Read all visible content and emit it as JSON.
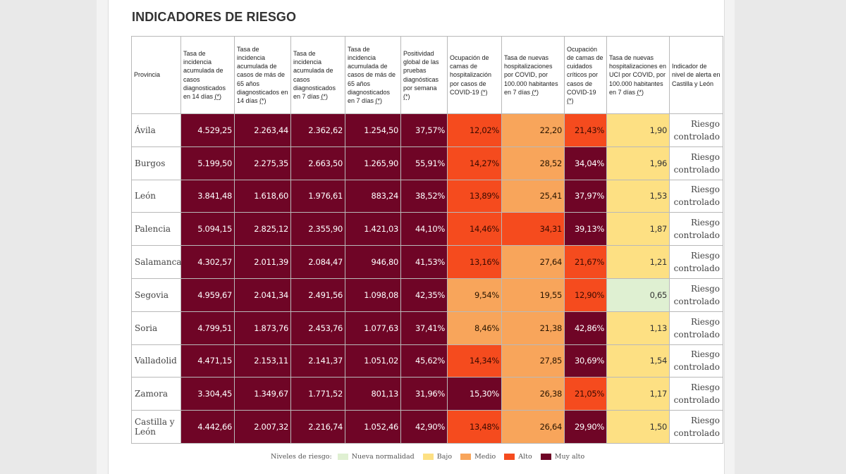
{
  "title": "INDICADORES DE RIESGO",
  "headers": [
    {
      "text": "Provincia",
      "star": ""
    },
    {
      "text": "Tasa de incidencia acumulada de casos diagnosticados en 14 días ",
      "star": "(*)"
    },
    {
      "text": "Tasa de incidencia acumulada de casos de más de 65 años diagnosticados en 14 días ",
      "star": "(*)"
    },
    {
      "text": "Tasa de incidencia acumulada de casos diagnosticados en 7 días ",
      "star": "(*)"
    },
    {
      "text": "Tasa de incidencia acumulada de casos de más de 65 años diagnosticados en 7 días ",
      "star": "(*)"
    },
    {
      "text": "Positividad global de las pruebas diagnósticas por semana ",
      "star": "(*)"
    },
    {
      "text": "Ocupación de camas de hospitalización por casos de COVID-19 ",
      "star": "(*)"
    },
    {
      "text": "Tasa de nuevas hospitalizaciones por COVID, por 100.000 habitantes en 7 días ",
      "star": "(*)"
    },
    {
      "text": "Ocupación de camas de cuidados críticos por casos de COVID-19 ",
      "star": "(*)"
    },
    {
      "text": "Tasa de nuevas hospitalizaciones en UCI por COVID, por 100.000 habitantes en 7 días ",
      "star": "(*)"
    },
    {
      "text": "Indicador de nivel de alerta en Castilla y León",
      "star": ""
    }
  ],
  "rows": [
    {
      "province": "Ávila",
      "alert": "Riesgo controlado",
      "cells": [
        {
          "v": "4.529,25",
          "l": "muyalto"
        },
        {
          "v": "2.263,44",
          "l": "muyalto"
        },
        {
          "v": "2.362,62",
          "l": "muyalto"
        },
        {
          "v": "1.254,50",
          "l": "muyalto"
        },
        {
          "v": "37,57%",
          "l": "muyalto"
        },
        {
          "v": "12,02%",
          "l": "alto"
        },
        {
          "v": "22,20",
          "l": "medio"
        },
        {
          "v": "21,43%",
          "l": "alto"
        },
        {
          "v": "1,90",
          "l": "bajo"
        }
      ]
    },
    {
      "province": "Burgos",
      "alert": "Riesgo controlado",
      "cells": [
        {
          "v": "5.199,50",
          "l": "muyalto"
        },
        {
          "v": "2.275,35",
          "l": "muyalto"
        },
        {
          "v": "2.663,50",
          "l": "muyalto"
        },
        {
          "v": "1.265,90",
          "l": "muyalto"
        },
        {
          "v": "55,91%",
          "l": "muyalto"
        },
        {
          "v": "14,27%",
          "l": "alto"
        },
        {
          "v": "28,52",
          "l": "medio"
        },
        {
          "v": "34,04%",
          "l": "muyalto"
        },
        {
          "v": "1,96",
          "l": "bajo"
        }
      ]
    },
    {
      "province": "León",
      "alert": "Riesgo controlado",
      "cells": [
        {
          "v": "3.841,48",
          "l": "muyalto"
        },
        {
          "v": "1.618,60",
          "l": "muyalto"
        },
        {
          "v": "1.976,61",
          "l": "muyalto"
        },
        {
          "v": "883,24",
          "l": "muyalto"
        },
        {
          "v": "38,52%",
          "l": "muyalto"
        },
        {
          "v": "13,89%",
          "l": "alto"
        },
        {
          "v": "25,41",
          "l": "medio"
        },
        {
          "v": "37,97%",
          "l": "muyalto"
        },
        {
          "v": "1,53",
          "l": "bajo"
        }
      ]
    },
    {
      "province": "Palencia",
      "alert": "Riesgo controlado",
      "cells": [
        {
          "v": "5.094,15",
          "l": "muyalto"
        },
        {
          "v": "2.825,12",
          "l": "muyalto"
        },
        {
          "v": "2.355,90",
          "l": "muyalto"
        },
        {
          "v": "1.421,03",
          "l": "muyalto"
        },
        {
          "v": "44,10%",
          "l": "muyalto"
        },
        {
          "v": "14,46%",
          "l": "alto"
        },
        {
          "v": "34,31",
          "l": "alto"
        },
        {
          "v": "39,13%",
          "l": "muyalto"
        },
        {
          "v": "1,87",
          "l": "bajo"
        }
      ]
    },
    {
      "province": "Salamanca",
      "alert": "Riesgo controlado",
      "cells": [
        {
          "v": "4.302,57",
          "l": "muyalto"
        },
        {
          "v": "2.011,39",
          "l": "muyalto"
        },
        {
          "v": "2.084,47",
          "l": "muyalto"
        },
        {
          "v": "946,80",
          "l": "muyalto"
        },
        {
          "v": "41,53%",
          "l": "muyalto"
        },
        {
          "v": "13,16%",
          "l": "alto"
        },
        {
          "v": "27,64",
          "l": "medio"
        },
        {
          "v": "21,67%",
          "l": "alto"
        },
        {
          "v": "1,21",
          "l": "bajo"
        }
      ]
    },
    {
      "province": "Segovia",
      "alert": "Riesgo controlado",
      "cells": [
        {
          "v": "4.959,67",
          "l": "muyalto"
        },
        {
          "v": "2.041,34",
          "l": "muyalto"
        },
        {
          "v": "2.491,56",
          "l": "muyalto"
        },
        {
          "v": "1.098,08",
          "l": "muyalto"
        },
        {
          "v": "42,35%",
          "l": "muyalto"
        },
        {
          "v": "9,54%",
          "l": "medio"
        },
        {
          "v": "19,55",
          "l": "medio"
        },
        {
          "v": "12,90%",
          "l": "alto"
        },
        {
          "v": "0,65",
          "l": "nueva"
        }
      ]
    },
    {
      "province": "Soria",
      "alert": "Riesgo controlado",
      "cells": [
        {
          "v": "4.799,51",
          "l": "muyalto"
        },
        {
          "v": "1.873,76",
          "l": "muyalto"
        },
        {
          "v": "2.453,76",
          "l": "muyalto"
        },
        {
          "v": "1.077,63",
          "l": "muyalto"
        },
        {
          "v": "37,41%",
          "l": "muyalto"
        },
        {
          "v": "8,46%",
          "l": "medio"
        },
        {
          "v": "21,38",
          "l": "medio"
        },
        {
          "v": "42,86%",
          "l": "muyalto"
        },
        {
          "v": "1,13",
          "l": "bajo"
        }
      ]
    },
    {
      "province": "Valladolid",
      "alert": "Riesgo controlado",
      "cells": [
        {
          "v": "4.471,15",
          "l": "muyalto"
        },
        {
          "v": "2.153,11",
          "l": "muyalto"
        },
        {
          "v": "2.141,37",
          "l": "muyalto"
        },
        {
          "v": "1.051,02",
          "l": "muyalto"
        },
        {
          "v": "45,62%",
          "l": "muyalto"
        },
        {
          "v": "14,34%",
          "l": "alto"
        },
        {
          "v": "27,85",
          "l": "medio"
        },
        {
          "v": "30,69%",
          "l": "muyalto"
        },
        {
          "v": "1,54",
          "l": "bajo"
        }
      ]
    },
    {
      "province": "Zamora",
      "alert": "Riesgo controlado",
      "cells": [
        {
          "v": "3.304,45",
          "l": "muyalto"
        },
        {
          "v": "1.349,67",
          "l": "muyalto"
        },
        {
          "v": "1.771,52",
          "l": "muyalto"
        },
        {
          "v": "801,13",
          "l": "muyalto"
        },
        {
          "v": "31,96%",
          "l": "muyalto"
        },
        {
          "v": "15,30%",
          "l": "muyalto"
        },
        {
          "v": "26,38",
          "l": "medio"
        },
        {
          "v": "21,05%",
          "l": "alto"
        },
        {
          "v": "1,17",
          "l": "bajo"
        }
      ]
    },
    {
      "province": "Castilla y León",
      "alert": "Riesgo controlado",
      "cells": [
        {
          "v": "4.442,66",
          "l": "muyalto"
        },
        {
          "v": "2.007,32",
          "l": "muyalto"
        },
        {
          "v": "2.216,74",
          "l": "muyalto"
        },
        {
          "v": "1.052,46",
          "l": "muyalto"
        },
        {
          "v": "42,90%",
          "l": "muyalto"
        },
        {
          "v": "13,48%",
          "l": "alto"
        },
        {
          "v": "26,64",
          "l": "medio"
        },
        {
          "v": "29,90%",
          "l": "muyalto"
        },
        {
          "v": "1,50",
          "l": "bajo"
        }
      ]
    }
  ],
  "legend": {
    "label": "Niveles de riesgo:",
    "items": [
      {
        "name": "Nueva normalidad",
        "color": "#dff0d2"
      },
      {
        "name": "Bajo",
        "color": "#fde083"
      },
      {
        "name": "Medio",
        "color": "#f8a55b"
      },
      {
        "name": "Alto",
        "color": "#f54b1e"
      },
      {
        "name": "Muy alto",
        "color": "#6f0526"
      }
    ]
  }
}
